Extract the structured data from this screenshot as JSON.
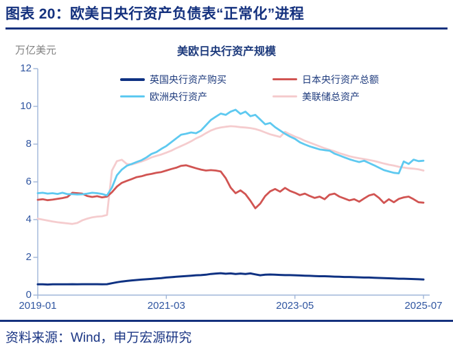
{
  "header": {
    "title": "图表 20：欧美日央行资产负债表“正常化”进程"
  },
  "source": {
    "text": "资料来源：Wind，申万宏源研究"
  },
  "colors": {
    "title_navy": "#14317E",
    "legend_text": "#1D3A7C",
    "axis_label": "#2F55A0",
    "axis_line": "#9FB5D8"
  },
  "chart_data": {
    "type": "line",
    "title": "美欧日央行资产规模",
    "unit_label": "万亿美元",
    "x_start": "2019-01",
    "x_end": "2025-07",
    "x_frequency": "monthly",
    "x_tick_labels": [
      "2019-01",
      "2021-03",
      "2023-05",
      "2025-07"
    ],
    "x_tick_indices": [
      0,
      26,
      52,
      78
    ],
    "y_ticks": [
      0,
      2,
      4,
      6,
      8,
      10,
      12
    ],
    "ylim": [
      0,
      12
    ],
    "grid": false,
    "legend_position": "top-inside",
    "series": [
      {
        "key": "uk",
        "name": "英国央行资产购买",
        "color": "#0E3182",
        "width": 3,
        "values": [
          0.57,
          0.57,
          0.56,
          0.57,
          0.57,
          0.57,
          0.57,
          0.58,
          0.57,
          0.58,
          0.58,
          0.58,
          0.58,
          0.57,
          0.58,
          0.63,
          0.68,
          0.72,
          0.75,
          0.78,
          0.8,
          0.82,
          0.84,
          0.86,
          0.88,
          0.9,
          0.93,
          0.95,
          0.97,
          0.99,
          1.01,
          1.03,
          1.05,
          1.06,
          1.08,
          1.12,
          1.14,
          1.16,
          1.13,
          1.15,
          1.12,
          1.14,
          1.12,
          1.15,
          1.1,
          1.05,
          1.08,
          1.09,
          1.08,
          1.07,
          1.06,
          1.06,
          1.05,
          1.04,
          1.03,
          1.02,
          1.01,
          1.0,
          1.0,
          0.99,
          0.98,
          0.97,
          0.96,
          0.96,
          0.95,
          0.94,
          0.93,
          0.93,
          0.92,
          0.91,
          0.9,
          0.89,
          0.88,
          0.87,
          0.87,
          0.86,
          0.85,
          0.84,
          0.83
        ]
      },
      {
        "key": "japan",
        "name": "日本央行资产总额",
        "color": "#D15452",
        "width": 2.8,
        "values": [
          5.05,
          5.08,
          5.03,
          5.06,
          5.1,
          5.14,
          5.2,
          5.42,
          5.4,
          5.38,
          5.25,
          5.2,
          5.24,
          5.18,
          5.22,
          5.45,
          5.75,
          5.95,
          6.05,
          6.15,
          6.25,
          6.3,
          6.38,
          6.42,
          6.48,
          6.52,
          6.6,
          6.68,
          6.75,
          6.85,
          6.88,
          6.8,
          6.72,
          6.65,
          6.6,
          6.62,
          6.6,
          6.55,
          6.2,
          5.7,
          5.4,
          5.55,
          5.35,
          5.0,
          4.6,
          4.85,
          5.25,
          5.5,
          5.62,
          5.48,
          5.68,
          5.52,
          5.42,
          5.3,
          5.38,
          5.25,
          5.15,
          5.22,
          5.08,
          5.32,
          5.38,
          5.22,
          5.12,
          5.02,
          5.08,
          4.95,
          5.12,
          5.28,
          5.35,
          5.15,
          4.88,
          5.08,
          4.92,
          5.1,
          5.18,
          5.22,
          5.08,
          4.92,
          4.9
        ]
      },
      {
        "key": "ecb",
        "name": "欧洲央行资产",
        "color": "#5EC9F0",
        "width": 2.8,
        "values": [
          5.4,
          5.42,
          5.38,
          5.4,
          5.36,
          5.42,
          5.35,
          5.35,
          5.33,
          5.34,
          5.38,
          5.42,
          5.4,
          5.36,
          5.28,
          5.7,
          6.35,
          6.65,
          6.85,
          6.95,
          7.05,
          7.15,
          7.3,
          7.48,
          7.58,
          7.75,
          7.9,
          8.1,
          8.3,
          8.5,
          8.55,
          8.62,
          8.58,
          8.72,
          9.0,
          9.28,
          9.45,
          9.62,
          9.55,
          9.72,
          9.82,
          9.6,
          9.72,
          9.48,
          9.55,
          9.3,
          9.05,
          9.12,
          8.9,
          8.72,
          8.55,
          8.4,
          8.28,
          8.1,
          7.98,
          7.88,
          7.8,
          7.72,
          7.68,
          7.65,
          7.5,
          7.4,
          7.3,
          7.2,
          7.12,
          7.05,
          7.12,
          7.0,
          6.88,
          6.75,
          6.62,
          6.55,
          6.48,
          6.45,
          7.08,
          6.95,
          7.18,
          7.1,
          7.12
        ]
      },
      {
        "key": "fed",
        "name": "美联储总资产",
        "color": "#F5CCCE",
        "width": 2.8,
        "values": [
          4.05,
          4.0,
          3.95,
          3.9,
          3.86,
          3.83,
          3.8,
          3.77,
          3.82,
          3.96,
          4.05,
          4.12,
          4.16,
          4.18,
          4.25,
          6.6,
          7.1,
          7.17,
          6.95,
          6.92,
          7.0,
          7.08,
          7.18,
          7.3,
          7.38,
          7.45,
          7.55,
          7.65,
          7.78,
          7.9,
          8.02,
          8.15,
          8.3,
          8.42,
          8.58,
          8.72,
          8.82,
          8.88,
          8.92,
          8.95,
          8.93,
          8.9,
          8.88,
          8.85,
          8.8,
          8.72,
          8.62,
          8.52,
          8.45,
          8.38,
          8.65,
          8.52,
          8.4,
          8.3,
          8.18,
          8.08,
          7.98,
          7.88,
          7.78,
          7.7,
          7.62,
          7.52,
          7.44,
          7.36,
          7.3,
          7.25,
          7.21,
          7.16,
          7.11,
          7.04,
          6.97,
          6.91,
          6.86,
          6.8,
          6.76,
          6.72,
          6.7,
          6.66,
          6.6
        ]
      }
    ]
  }
}
